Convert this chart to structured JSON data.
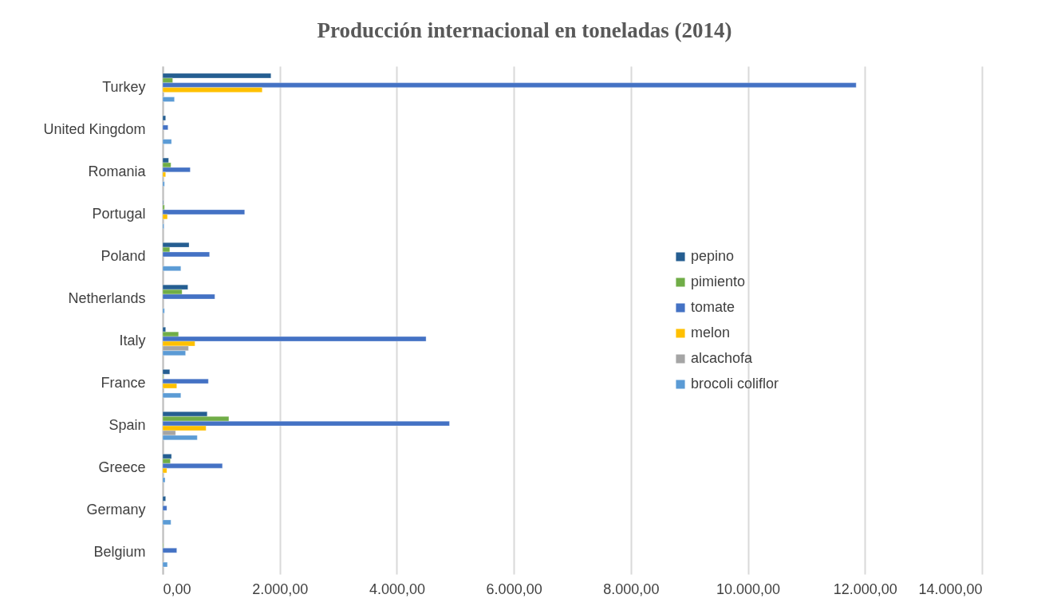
{
  "chart_data": {
    "type": "bar",
    "orientation": "horizontal",
    "title": "Producción internacional en toneladas (2014)",
    "categories": [
      "Turkey",
      "United Kingdom",
      "Romania",
      "Portugal",
      "Poland",
      "Netherlands",
      "Italy",
      "France",
      "Spain",
      "Greece",
      "Germany",
      "Belgium"
    ],
    "series": [
      {
        "name": "pepino",
        "color": "#255e91",
        "values": [
          1850,
          50,
          100,
          10,
          450,
          430,
          50,
          120,
          760,
          150,
          50,
          null
        ]
      },
      {
        "name": "pimiento",
        "color": "#70ad47",
        "values": [
          170,
          null,
          140,
          30,
          120,
          330,
          270,
          10,
          1130,
          130,
          null,
          10
        ]
      },
      {
        "name": "tomate",
        "color": "#4472c4",
        "values": [
          11850,
          90,
          470,
          1400,
          800,
          890,
          4500,
          780,
          4900,
          1020,
          70,
          240
        ]
      },
      {
        "name": "melon",
        "color": "#ffc000",
        "values": [
          1700,
          null,
          50,
          80,
          null,
          null,
          550,
          240,
          740,
          70,
          null,
          null
        ]
      },
      {
        "name": "alcachofa",
        "color": "#a5a5a5",
        "values": [
          20,
          null,
          null,
          null,
          null,
          null,
          440,
          20,
          220,
          null,
          null,
          null
        ]
      },
      {
        "name": "brocoli coliflor",
        "color": "#5b9bd5",
        "values": [
          200,
          150,
          30,
          20,
          310,
          30,
          390,
          310,
          590,
          40,
          140,
          80
        ]
      }
    ],
    "xlim": [
      0,
      14000
    ],
    "xticks": [
      {
        "value": 0,
        "label": "0,00"
      },
      {
        "value": 2000,
        "label": "2.000,00"
      },
      {
        "value": 4000,
        "label": "4.000,00"
      },
      {
        "value": 6000,
        "label": "6.000,00"
      },
      {
        "value": 8000,
        "label": "8.000,00"
      },
      {
        "value": 10000,
        "label": "10.000,00"
      },
      {
        "value": 12000,
        "label": "12.000,00"
      },
      {
        "value": 14000,
        "label": "14.000,00"
      }
    ],
    "grid": "x",
    "legend": "right"
  }
}
